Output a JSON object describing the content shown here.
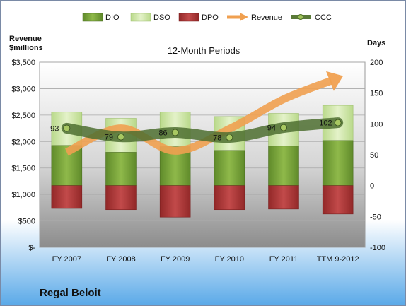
{
  "chart_data": {
    "type": "bar",
    "subtitle": "12-Month Periods",
    "company": "Regal Beloit",
    "categories": [
      "FY 2007",
      "FY 2008",
      "FY 2009",
      "FY 2010",
      "FY 2011",
      "TTM 9-2012"
    ],
    "y_left": {
      "title_line1": "Revenue",
      "title_line2": "$millions",
      "range": [
        0,
        3500
      ],
      "ticks": [
        "$-",
        "$500",
        "$1,000",
        "$1,500",
        "$2,000",
        "$2,500",
        "$3,000",
        "$3,500"
      ]
    },
    "y_right": {
      "title": "Days",
      "range": [
        -100,
        200
      ],
      "ticks": [
        "-100",
        "-50",
        "0",
        "50",
        "100",
        "150",
        "200"
      ]
    },
    "legend_position": "top",
    "series": [
      {
        "name": "DIO",
        "axis": "right",
        "kind": "stacked-bar",
        "color": "#7aa23a",
        "values": [
          65,
          54,
          63,
          57,
          64,
          73
        ]
      },
      {
        "name": "DSO",
        "axis": "right",
        "kind": "stacked-bar",
        "color": "#d4ebb0",
        "values": [
          54,
          55,
          56,
          55,
          53,
          57
        ]
      },
      {
        "name": "DPO",
        "axis": "right",
        "kind": "negative-bar",
        "color": "#b33a3a",
        "values": [
          -37,
          -39,
          -51,
          -39,
          -38,
          -46
        ]
      },
      {
        "name": "Revenue",
        "axis": "left",
        "kind": "arrow-line",
        "color": "#f0a050",
        "values": [
          1800,
          2250,
          1825,
          2240,
          2800,
          3200
        ]
      },
      {
        "name": "CCC",
        "axis": "right",
        "kind": "line",
        "color": "#5a7a38",
        "values": [
          93,
          79,
          86,
          78,
          94,
          102
        ]
      }
    ],
    "ccc_labels": [
      "93",
      "79",
      "86",
      "78",
      "94",
      "102"
    ]
  }
}
